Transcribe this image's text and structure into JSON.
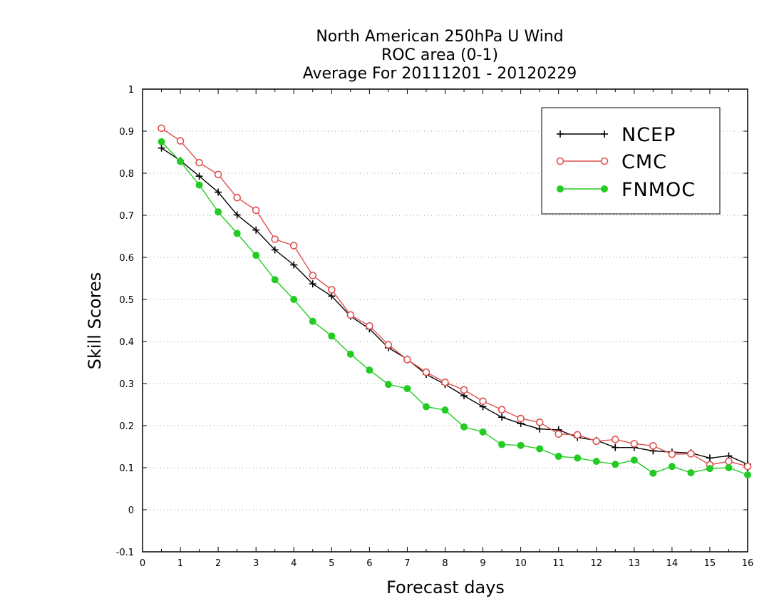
{
  "chart_data": {
    "type": "line",
    "title_lines": [
      "North American 250hPa U Wind",
      "ROC area (0-1)",
      "Average For 20111201 - 20120229"
    ],
    "xlabel": "Forecast days",
    "ylabel": "Skill Scores",
    "xlim": [
      0,
      16
    ],
    "ylim": [
      -0.1,
      1
    ],
    "x_ticks": [
      "0",
      "1",
      "2",
      "3",
      "4",
      "5",
      "6",
      "7",
      "8",
      "9",
      "10",
      "11",
      "12",
      "13",
      "14",
      "15",
      "16"
    ],
    "y_ticks": [
      "-0.1",
      "0",
      "0.1",
      "0.2",
      "0.3",
      "0.4",
      "0.5",
      "0.6",
      "0.7",
      "0.8",
      "0.9",
      "1"
    ],
    "y_tick_values": [
      -0.1,
      0,
      0.1,
      0.2,
      0.3,
      0.4,
      0.5,
      0.6,
      0.7,
      0.8,
      0.9,
      1
    ],
    "grid": "horizontal dotted",
    "legend_position": "top-right",
    "x": [
      0.5,
      1,
      1.5,
      2,
      2.5,
      3,
      3.5,
      4,
      4.5,
      5,
      5.5,
      6,
      6.5,
      7,
      7.5,
      8,
      8.5,
      9,
      9.5,
      10,
      10.5,
      11,
      11.5,
      12,
      12.5,
      13,
      13.5,
      14,
      14.5,
      15,
      15.5,
      16
    ],
    "series": [
      {
        "name": "NCEP",
        "color": "#000000",
        "marker": "plus",
        "values": [
          0.86,
          0.83,
          0.793,
          0.755,
          0.701,
          0.665,
          0.618,
          0.582,
          0.537,
          0.508,
          0.46,
          0.43,
          0.385,
          0.358,
          0.322,
          0.298,
          0.271,
          0.245,
          0.22,
          0.205,
          0.192,
          0.19,
          0.172,
          0.165,
          0.148,
          0.148,
          0.14,
          0.137,
          0.135,
          0.123,
          0.128,
          0.108
        ]
      },
      {
        "name": "CMC",
        "color": "#e05050",
        "marker": "open-circle",
        "values": [
          0.907,
          0.877,
          0.825,
          0.797,
          0.742,
          0.712,
          0.643,
          0.628,
          0.557,
          0.523,
          0.463,
          0.437,
          0.392,
          0.357,
          0.327,
          0.303,
          0.285,
          0.258,
          0.238,
          0.217,
          0.208,
          0.18,
          0.178,
          0.163,
          0.167,
          0.157,
          0.152,
          0.132,
          0.133,
          0.107,
          0.115,
          0.103
        ]
      },
      {
        "name": "FNMOC",
        "color": "#22cc22",
        "marker": "filled-circle",
        "values": [
          0.875,
          0.828,
          0.772,
          0.708,
          0.657,
          0.605,
          0.547,
          0.5,
          0.448,
          0.413,
          0.37,
          0.332,
          0.298,
          0.288,
          0.245,
          0.237,
          0.197,
          0.185,
          0.155,
          0.153,
          0.145,
          0.127,
          0.123,
          0.115,
          0.108,
          0.118,
          0.087,
          0.103,
          0.088,
          0.098,
          0.1,
          0.083
        ]
      }
    ]
  }
}
